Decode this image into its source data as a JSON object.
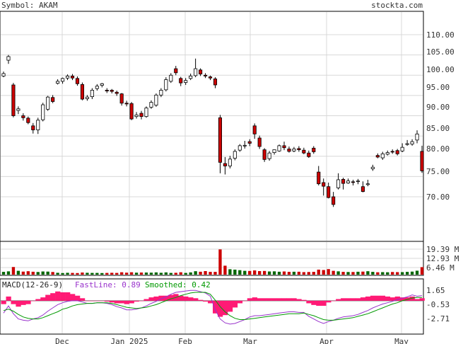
{
  "header": {
    "symbol_text": "Symbol: AKAM",
    "site_text": "stockta.com"
  },
  "price_axis": {
    "ticks": [
      "110.00",
      "105.00",
      "100.00",
      "95.00",
      "90.00",
      "85.00",
      "80.00",
      "75.00",
      "70.00"
    ]
  },
  "volume_axis": {
    "ticks": [
      "19.39 M",
      "12.93 M",
      "6.46 M"
    ]
  },
  "macd_panel": {
    "label": "MACD(12-26-9)",
    "fast_label": "FastLine: 0.89",
    "smooth_label": "Smoothed: 0.42",
    "ticks": [
      "1.65",
      "-0.53",
      "-2.71"
    ]
  },
  "x_axis": {
    "labels": [
      "Dec",
      "Jan 2025",
      "Feb",
      "Mar",
      "Apr",
      "May"
    ]
  },
  "colors": {
    "up": "#ffffff",
    "down": "#cc0000",
    "vol_up": "#006600",
    "vol_down": "#cc0000",
    "histogram": "#ff1a75",
    "fast_line": "#9933cc",
    "smooth_line": "#009900",
    "grid": "#d8d8d8"
  },
  "chart_data": [
    {
      "type": "candlestick",
      "title": "Symbol: AKAM",
      "ylim": [
        63,
        113
      ],
      "x_labels": [
        "Dec",
        "Jan 2025",
        "Feb",
        "Mar",
        "Apr",
        "May"
      ],
      "grid": true,
      "close": [
        100.4,
        104.6,
        90,
        91.7,
        89.5,
        88.3,
        86.5,
        88.9,
        92.7,
        94.6,
        93.5,
        98.5,
        99.2,
        99.8,
        99.3,
        97.9,
        94.1,
        94.6,
        96.3,
        97.3,
        97.9,
        96.1,
        96,
        95.5,
        93.1,
        92.9,
        89.2,
        90.2,
        89.8,
        91.9,
        93.3,
        95.1,
        96.3,
        98.9,
        100,
        100.6,
        98.1,
        98.7,
        99.8,
        101.6,
        100.3,
        99.8,
        99.3,
        97.6,
        78.5,
        77.6,
        79.3,
        81.2,
        82.6,
        82.7,
        83.2,
        85.5,
        82.4,
        79.2,
        80.8,
        81.6,
        82.6,
        82.1,
        81.2,
        81.8,
        81.6,
        80.8,
        79.9,
        81.1,
        73.2,
        72.6,
        69.8,
        68.1,
        74.2,
        73.3,
        73.9,
        73.6,
        73.9,
        71.3,
        73.2,
        77.3,
        79.8,
        80.6,
        80.9,
        81.1,
        80.6,
        82.2,
        83.1,
        83.6,
        85.5,
        76.4
      ],
      "open": [
        99.8,
        103.7,
        97.6,
        91.3,
        90,
        89.4,
        87.5,
        86.5,
        89,
        91.6,
        94.5,
        98,
        98.5,
        99.3,
        99.8,
        99.2,
        97.7,
        94.2,
        94.7,
        96.7,
        97.5,
        96.3,
        96.3,
        95.8,
        95.4,
        93.1,
        93,
        89.8,
        90.6,
        89.8,
        92.1,
        92.6,
        95.1,
        96.4,
        98.5,
        101.6,
        99.2,
        98.2,
        99.2,
        99.9,
        101.3,
        100,
        99.6,
        99.1,
        89.5,
        78.2,
        77.6,
        79.5,
        81.5,
        82.7,
        83.6,
        87.5,
        84.5,
        81.6,
        79.4,
        80.9,
        81.3,
        82.6,
        81.8,
        81.3,
        81.9,
        81.5,
        80.8,
        82,
        76.1,
        73.5,
        72.5,
        70,
        72.2,
        74.3,
        73.4,
        73.7,
        73.8,
        72.5,
        73,
        76.9,
        80.2,
        79.6,
        80.5,
        81.2,
        81.4,
        81.3,
        82.9,
        83,
        84,
        81.2
      ],
      "high": [
        100.9,
        105,
        98.1,
        92.3,
        90.6,
        89.8,
        88.2,
        89.5,
        93.2,
        94.9,
        95.1,
        99,
        99.4,
        100.2,
        100.3,
        99.7,
        98.2,
        95.1,
        96.8,
        97.8,
        98.1,
        96.8,
        96.6,
        96.2,
        95.6,
        93.7,
        93.4,
        90.9,
        91.2,
        92.3,
        93.8,
        95.5,
        96.8,
        99.5,
        100.5,
        102.3,
        99.6,
        99.3,
        100.4,
        104.1,
        101.7,
        100.5,
        99.9,
        99.5,
        90.2,
        79.8,
        80.1,
        81.7,
        83,
        83.8,
        84.2,
        88.1,
        85.1,
        82,
        81.3,
        81.4,
        82.9,
        83.6,
        82.4,
        82.3,
        82.5,
        82.1,
        81.4,
        82.5,
        77.6,
        74.5,
        73.5,
        71.2,
        75.8,
        74.7,
        74.5,
        74.2,
        74.4,
        73.8,
        74.2,
        77.9,
        80.7,
        81.1,
        81.4,
        81.7,
        81.8,
        83.2,
        84,
        84.2,
        86.4,
        82.6
      ],
      "low": [
        99.5,
        102.8,
        89.6,
        90.4,
        88.8,
        87.9,
        85.6,
        85.5,
        88.6,
        91.2,
        93.1,
        97.7,
        97.9,
        98.8,
        98.8,
        97.4,
        93.8,
        93.7,
        94.1,
        96.2,
        97,
        95.6,
        95.5,
        94.9,
        92.5,
        92.3,
        88.9,
        89.3,
        89.1,
        89.5,
        91.7,
        92.2,
        94.6,
        96,
        98.1,
        100,
        97.3,
        97.6,
        98.8,
        99.5,
        99.8,
        99.3,
        98.8,
        96.8,
        75.8,
        75.5,
        77,
        79,
        81.1,
        81.9,
        82.5,
        84.3,
        81.8,
        78.6,
        78.9,
        80.4,
        81.1,
        81.5,
        80.9,
        81,
        81.1,
        80.5,
        79.6,
        80.6,
        72.8,
        70.3,
        69.6,
        67.5,
        71.8,
        71.8,
        73.2,
        72.8,
        73.1,
        71.1,
        72.6,
        76.4,
        79.5,
        79.1,
        80.2,
        80.6,
        80.2,
        81,
        82.6,
        82.6,
        83.2,
        75.9
      ]
    },
    {
      "type": "bar",
      "ylim": [
        0,
        19.39
      ],
      "volume": [
        2.1,
        2.5,
        5.8,
        2.9,
        2.3,
        2.6,
        2.2,
        2.0,
        2.4,
        2.3,
        2.0,
        1.4,
        1.2,
        1.4,
        1.3,
        1.2,
        1.6,
        1.4,
        1.3,
        1.3,
        1.2,
        1.3,
        1.4,
        1.3,
        1.8,
        1.5,
        1.8,
        1.5,
        1.6,
        1.6,
        1.5,
        1.7,
        1.4,
        1.7,
        1.3,
        1.4,
        1.8,
        1.3,
        1.7,
        2.6,
        2.2,
        2.7,
        2.1,
        2.1,
        19.2,
        6.8,
        4.1,
        3.8,
        3.4,
        2.9,
        2.8,
        3.2,
        2.7,
        2.8,
        2.4,
        2.5,
        2.2,
        2.4,
        2.1,
        2.2,
        2.2,
        1.9,
        2.0,
        2.1,
        3.8,
        3.5,
        4.2,
        2.9,
        2.5,
        2.1,
        2.0,
        2.0,
        2.2,
        2.3,
        2.6,
        2.1,
        1.8,
        1.9,
        1.8,
        2.0,
        1.9,
        1.9,
        2.1,
        2.3,
        3.0,
        5.7
      ]
    },
    {
      "type": "line",
      "ylim": [
        -3.7,
        2.6
      ],
      "series": [
        {
          "name": "FastLine",
          "values": [
            -1.9,
            -0.8,
            -2.0,
            -2.8,
            -3.0,
            -3.1,
            -2.8,
            -2.6,
            -2.2,
            -1.6,
            -1.1,
            -0.6,
            -0.3,
            -0.1,
            0.0,
            0.0,
            -0.2,
            -0.4,
            -0.4,
            -0.3,
            -0.3,
            -0.4,
            -0.6,
            -0.9,
            -1.1,
            -1.4,
            -1.4,
            -1.3,
            -1.1,
            -0.8,
            -0.4,
            -0.1,
            0.3,
            0.6,
            1.0,
            1.3,
            1.4,
            1.5,
            1.6,
            1.6,
            1.4,
            1.2,
            0.7,
            -1.4,
            -2.8,
            -3.4,
            -3.6,
            -3.5,
            -3.2,
            -2.9,
            -2.5,
            -2.3,
            -2.3,
            -2.2,
            -2.1,
            -2.0,
            -1.9,
            -1.8,
            -1.7,
            -1.7,
            -1.8,
            -1.8,
            -2.4,
            -2.8,
            -3.2,
            -3.5,
            -3.2,
            -3.0,
            -2.7,
            -2.5,
            -2.4,
            -2.3,
            -2.1,
            -1.8,
            -1.5,
            -1.1,
            -0.8,
            -0.5,
            -0.3,
            -0.1,
            0.2,
            0.4,
            0.6,
            0.9,
            0.7,
            0.8
          ]
        },
        {
          "name": "Smoothed",
          "values": [
            -1.5,
            -1.3,
            -1.6,
            -2.1,
            -2.5,
            -2.7,
            -2.8,
            -2.8,
            -2.6,
            -2.3,
            -2.0,
            -1.7,
            -1.3,
            -1.1,
            -0.8,
            -0.6,
            -0.5,
            -0.4,
            -0.4,
            -0.3,
            -0.3,
            -0.3,
            -0.4,
            -0.6,
            -0.8,
            -1.0,
            -1.1,
            -1.2,
            -1.1,
            -1.0,
            -0.8,
            -0.6,
            -0.3,
            0.0,
            0.3,
            0.5,
            0.8,
            1.0,
            1.2,
            1.3,
            1.3,
            1.3,
            1.0,
            0.1,
            -0.9,
            -1.7,
            -2.3,
            -2.7,
            -2.9,
            -2.9,
            -2.8,
            -2.7,
            -2.6,
            -2.5,
            -2.4,
            -2.3,
            -2.2,
            -2.1,
            -2.0,
            -2.0,
            -2.0,
            -1.9,
            -2.1,
            -2.3,
            -2.6,
            -2.9,
            -3.0,
            -3.0,
            -2.9,
            -2.8,
            -2.7,
            -2.6,
            -2.4,
            -2.2,
            -2.0,
            -1.7,
            -1.4,
            -1.1,
            -0.8,
            -0.5,
            -0.3,
            0.0,
            0.2,
            0.4,
            0.5,
            0.5
          ]
        }
      ]
    }
  ]
}
